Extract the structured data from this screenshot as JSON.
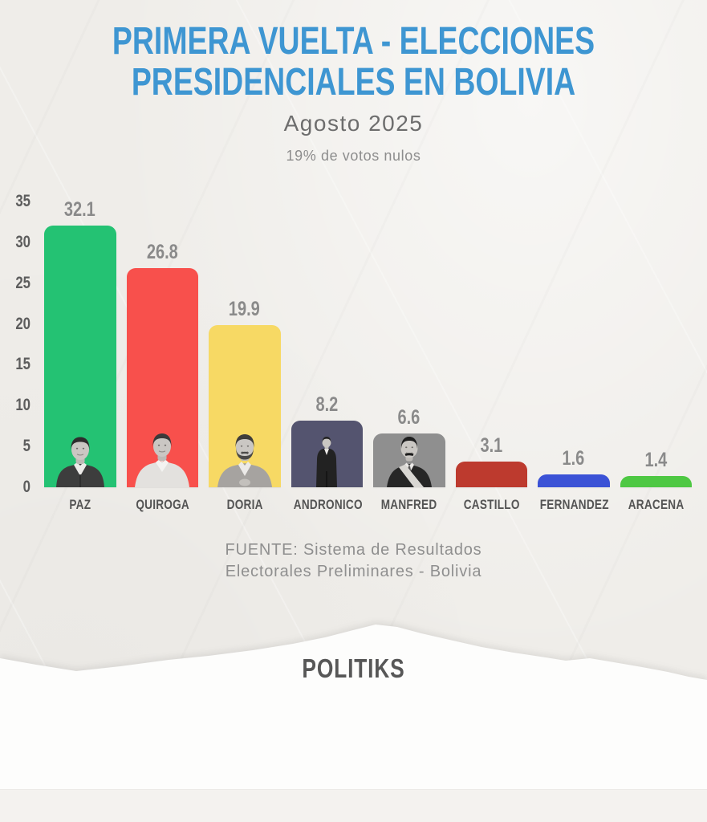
{
  "header": {
    "title_line1": "PRIMERA VUELTA - ELECCIONES",
    "title_line2": "PRESIDENCIALES EN BOLIVIA",
    "title_color": "#3e96d2",
    "subtitle": "Agosto 2025",
    "note": "19% de votos nulos"
  },
  "chart_data": {
    "type": "bar",
    "title": "Primera Vuelta - Elecciones Presidenciales en Bolivia",
    "subtitle": "Agosto 2025",
    "annotation": "19% de votos nulos",
    "categories": [
      "PAZ",
      "QUIROGA",
      "DORIA",
      "ANDRONICO",
      "MANFRED",
      "CASTILLO",
      "FERNANDEZ",
      "ARACENA"
    ],
    "values": [
      32.1,
      26.8,
      19.9,
      8.2,
      6.6,
      3.1,
      1.6,
      1.4
    ],
    "value_labels": [
      "32.1",
      "26.8",
      "19.9",
      "8.2",
      "6.6",
      "3.1",
      "1.6",
      "1.4"
    ],
    "bar_colors": [
      "#24c273",
      "#f8504c",
      "#f7d964",
      "#54546f",
      "#8f8f8f",
      "#bd3a2e",
      "#3b52d6",
      "#4ec843"
    ],
    "photos": [
      "paz-portrait",
      "quiroga-portrait",
      "doria-portrait",
      "andronico-portrait",
      "manfred-portrait",
      null,
      null,
      null
    ],
    "xlabel": "",
    "ylabel": "",
    "ylim": [
      0,
      35
    ],
    "yticks": [
      0,
      5,
      10,
      15,
      20,
      25,
      30,
      35
    ],
    "grid": false,
    "legend_position": "none"
  },
  "source": {
    "line1": "FUENTE: Sistema de Resultados",
    "line2": "Electorales Preliminares - Bolivia"
  },
  "footer": {
    "brand": "POLITIKS"
  }
}
